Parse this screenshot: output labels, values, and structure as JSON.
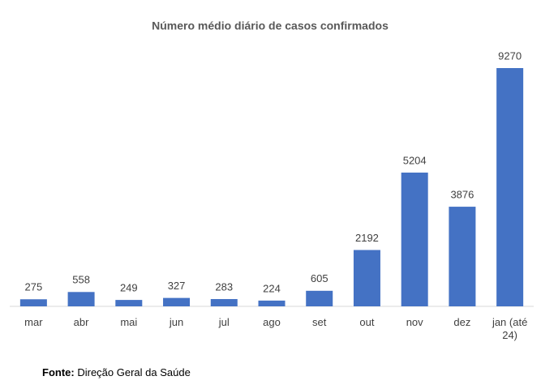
{
  "chart_data": {
    "type": "bar",
    "title": "Número médio diário de casos confirmados",
    "categories": [
      "mar",
      "abr",
      "mai",
      "jun",
      "jul",
      "ago",
      "set",
      "out",
      "nov",
      "dez",
      "jan (até 24)"
    ],
    "values": [
      275,
      558,
      249,
      327,
      283,
      224,
      605,
      2192,
      5204,
      3876,
      9270
    ],
    "color": "#4472c4",
    "source_label": "Fonte:",
    "source": "Direção Geral da Saúde"
  }
}
